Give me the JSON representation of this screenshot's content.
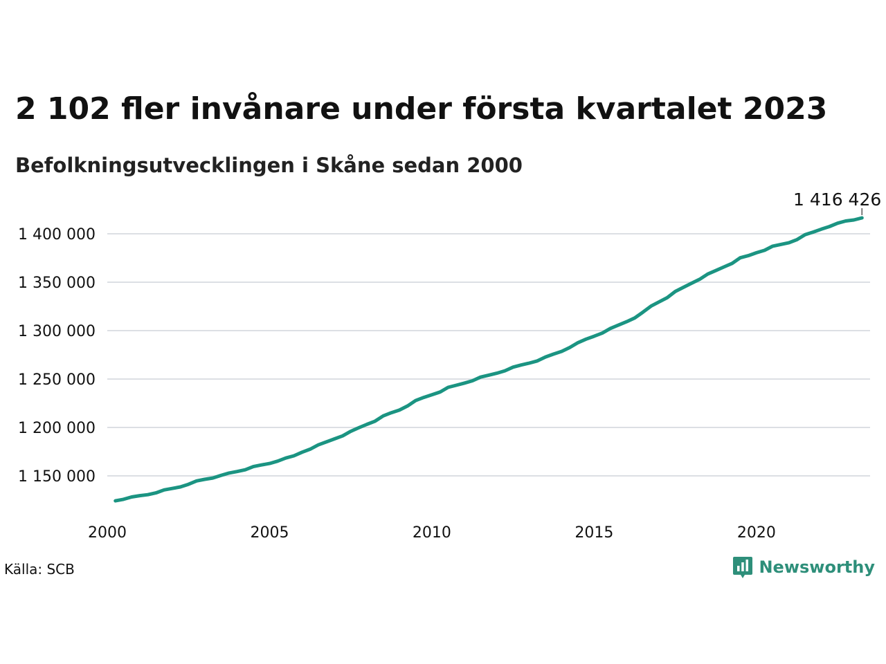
{
  "title": "2 102 fler invånare under första kvartalet 2023",
  "subtitle": "Befolkningsutvecklingen i Skåne sedan 2000",
  "source": "Källa: SCB",
  "brand": "Newsworthy",
  "colors": {
    "line": "#1b9482",
    "grid": "#dcdfe4",
    "brand": "#2e8f7a"
  },
  "chart_data": {
    "type": "line",
    "title": "2 102 fler invånare under första kvartalet 2023",
    "subtitle": "Befolkningsutvecklingen i Skåne sedan 2000",
    "xlabel": "",
    "ylabel": "",
    "xlim": [
      2000,
      2023.5
    ],
    "ylim": [
      1120000,
      1420000
    ],
    "x_ticks": [
      2000,
      2005,
      2010,
      2015,
      2020
    ],
    "y_ticks": [
      1150000,
      1200000,
      1250000,
      1300000,
      1350000,
      1400000
    ],
    "y_tick_labels": [
      "1 150 000",
      "1 200 000",
      "1 250 000",
      "1 300 000",
      "1 350 000",
      "1 400 000"
    ],
    "grid": true,
    "end_label": "1 416 426",
    "series": [
      {
        "x": [
          2000.25,
          2000.5,
          2000.75,
          2001.0,
          2001.25,
          2001.5,
          2001.75,
          2002.0,
          2002.25,
          2002.5,
          2002.75,
          2003.0,
          2003.25,
          2003.5,
          2003.75,
          2004.0,
          2004.25,
          2004.5,
          2004.75,
          2005.0,
          2005.25,
          2005.5,
          2005.75,
          2006.0,
          2006.25,
          2006.5,
          2006.75,
          2007.0,
          2007.25,
          2007.5,
          2007.75,
          2008.0,
          2008.25,
          2008.5,
          2008.75,
          2009.0,
          2009.25,
          2009.5,
          2009.75,
          2010.0,
          2010.25,
          2010.5,
          2010.75,
          2011.0,
          2011.25,
          2011.5,
          2011.75,
          2012.0,
          2012.25,
          2012.5,
          2012.75,
          2013.0,
          2013.25,
          2013.5,
          2013.75,
          2014.0,
          2014.25,
          2014.5,
          2014.75,
          2015.0,
          2015.25,
          2015.5,
          2015.75,
          2016.0,
          2016.25,
          2016.5,
          2016.75,
          2017.0,
          2017.25,
          2017.5,
          2017.75,
          2018.0,
          2018.25,
          2018.5,
          2018.75,
          2019.0,
          2019.25,
          2019.5,
          2019.75,
          2020.0,
          2020.25,
          2020.5,
          2020.75,
          2021.0,
          2021.25,
          2021.5,
          2021.75,
          2022.0,
          2022.25,
          2022.5,
          2022.75,
          2023.0,
          2023.25
        ],
        "values": [
          1124200,
          1125800,
          1128200,
          1129600,
          1130600,
          1132400,
          1135500,
          1137000,
          1138600,
          1141300,
          1144800,
          1146400,
          1147800,
          1150400,
          1152900,
          1154500,
          1156300,
          1159600,
          1161300,
          1162800,
          1165200,
          1168400,
          1170700,
          1174400,
          1177600,
          1182000,
          1185100,
          1188200,
          1191300,
          1196000,
          1199700,
          1203200,
          1206500,
          1211900,
          1215200,
          1217900,
          1222200,
          1227800,
          1231000,
          1233700,
          1236600,
          1241400,
          1243600,
          1245800,
          1248200,
          1252000,
          1254000,
          1256000,
          1258500,
          1262300,
          1264500,
          1266400,
          1268700,
          1272800,
          1275800,
          1278600,
          1282600,
          1287600,
          1291200,
          1294200,
          1297400,
          1302300,
          1305800,
          1309200,
          1313100,
          1319000,
          1325300,
          1329700,
          1334000,
          1340400,
          1344700,
          1348900,
          1353000,
          1358400,
          1362100,
          1365800,
          1369400,
          1375200,
          1377400,
          1380400,
          1382900,
          1387200,
          1389000,
          1390800,
          1394000,
          1399100,
          1401800,
          1404800,
          1407500,
          1410900,
          1413200,
          1414300,
          1416426
        ]
      }
    ]
  }
}
